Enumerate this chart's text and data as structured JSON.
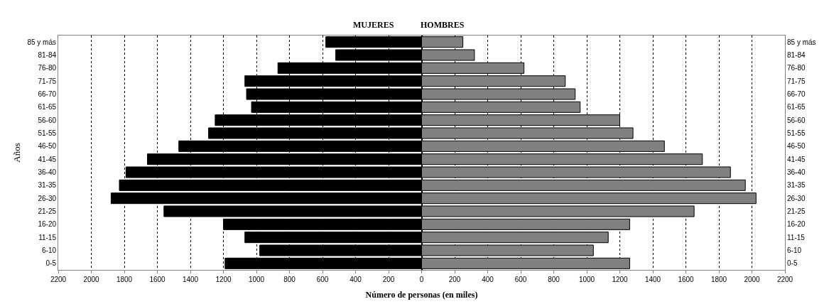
{
  "chart_data": {
    "type": "bar",
    "orientation": "horizontal",
    "xlabel": "Número de personas (en miles)",
    "ylabel": "Años",
    "categories": [
      "85 y más",
      "81-84",
      "76-80",
      "71-75",
      "66-70",
      "61-65",
      "56-60",
      "51-55",
      "46-50",
      "41-45",
      "36-40",
      "31-35",
      "26-30",
      "21-25",
      "16-20",
      "11-15",
      "6-10",
      "0-5"
    ],
    "series": [
      {
        "name": "MUJERES",
        "color": "#000000",
        "values": [
          -580,
          -520,
          -870,
          -1070,
          -1060,
          -1030,
          -1250,
          -1290,
          -1470,
          -1660,
          -1790,
          -1830,
          -1880,
          -1560,
          -1200,
          -1070,
          -980,
          -1190
        ]
      },
      {
        "name": "HOMBRES",
        "color": "#808080",
        "values": [
          250,
          320,
          620,
          870,
          930,
          960,
          1200,
          1280,
          1470,
          1700,
          1870,
          1960,
          2025,
          1650,
          1260,
          1130,
          1040,
          1260
        ]
      }
    ],
    "xlim": [
      -2200,
      2200
    ],
    "xticks": [
      {
        "value": -2200,
        "label": "2200"
      },
      {
        "value": -2000,
        "label": "2000"
      },
      {
        "value": -1800,
        "label": "1800"
      },
      {
        "value": -1600,
        "label": "1600"
      },
      {
        "value": -1400,
        "label": "1400"
      },
      {
        "value": -1200,
        "label": "1200"
      },
      {
        "value": -1000,
        "label": "1000"
      },
      {
        "value": -800,
        "label": "800"
      },
      {
        "value": -600,
        "label": "600"
      },
      {
        "value": -400,
        "label": "400"
      },
      {
        "value": -200,
        "label": "200"
      },
      0,
      200,
      400,
      600,
      800,
      1000,
      1200,
      1400,
      1600,
      1800,
      2000,
      2200
    ],
    "grid": "x",
    "legend": false,
    "stacked": true
  }
}
